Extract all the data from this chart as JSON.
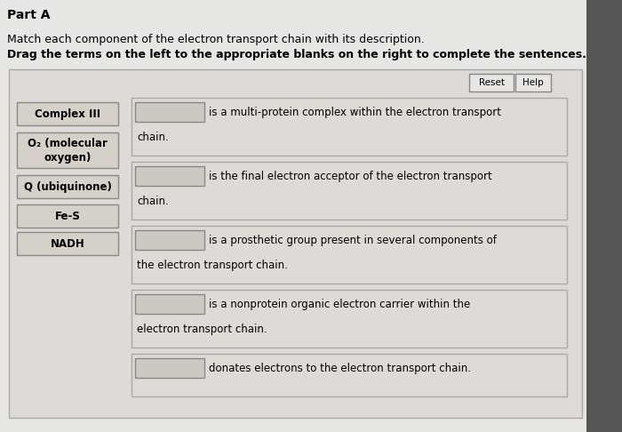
{
  "title_part": "Part A",
  "instruction1": "Match each component of the electron transport chain with its description.",
  "instruction2": "Drag the terms on the left to the appropriate blanks on the right to complete the sentences.",
  "left_terms": [
    "Complex III",
    "O₂ (molecular\noxygen)",
    "Q (ubiquinone)",
    "Fe-S",
    "NADH"
  ],
  "right_sentences": [
    "  is a multi-protein complex within the electron transport\nchain.",
    "  is the final electron acceptor of the electron transport\nchain.",
    "  is a prosthetic group present in several components of\nthe electron transport chain.",
    "  is a nonprotein organic electron carrier within the\nelectron transport chain.",
    "  donates electrons to the electron transport chain."
  ],
  "page_bg": "#e8e6e3",
  "container_bg": "#dedad5",
  "container_edge": "#aaaaaa",
  "left_box_bg": "#d5d0c8",
  "left_box_edge": "#888888",
  "right_box_bg": "#dedad5",
  "right_box_edge": "#aaaaaa",
  "blank_box_bg": "#ccc9c2",
  "blank_box_edge": "#888888",
  "button_bg": "#e8e6e3",
  "button_edge": "#888888",
  "dark_right": "#555555",
  "figsize": [
    7.0,
    4.86
  ],
  "dpi": 100
}
